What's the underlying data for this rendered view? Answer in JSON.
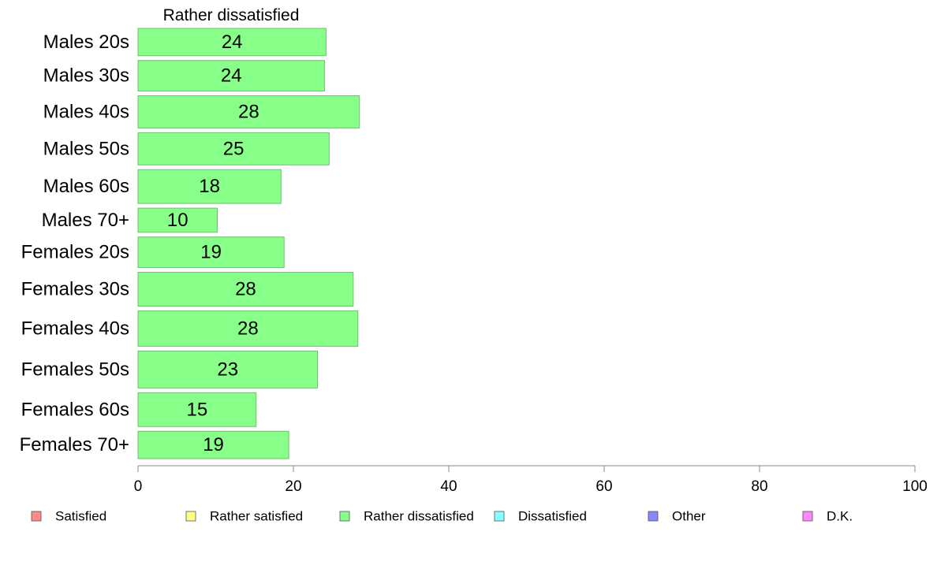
{
  "chart_data": {
    "type": "bar",
    "orientation": "horizontal",
    "panel_title": "Rather dissatisfied",
    "categories": [
      "Males 20s",
      "Males 30s",
      "Males 40s",
      "Males 50s",
      "Males 60s",
      "Males 70+",
      "Females 20s",
      "Females 30s",
      "Females 40s",
      "Females 50s",
      "Females 60s",
      "Females 70+"
    ],
    "values": [
      24,
      24,
      28,
      25,
      18,
      10,
      19,
      28,
      28,
      23,
      15,
      19
    ],
    "precise_values": [
      24.2,
      24.0,
      28.5,
      24.6,
      18.4,
      10.2,
      18.8,
      27.7,
      28.3,
      23.1,
      15.2,
      19.4
    ],
    "bar_thickness_relative": [
      34,
      38,
      40,
      40,
      42,
      30,
      38,
      42,
      44,
      46,
      42,
      34
    ],
    "xlim": [
      0,
      100
    ],
    "xticks": [
      0,
      20,
      40,
      60,
      80,
      100
    ],
    "bar_color": "#88ff88",
    "bar_edge_color": "#6fbf6f",
    "axis_color": "#888888",
    "legend_position": "bottom",
    "legend": [
      {
        "label": "Satisfied",
        "color": "#ff8888"
      },
      {
        "label": "Rather satisfied",
        "color": "#ffff88"
      },
      {
        "label": "Rather dissatisfied",
        "color": "#88ff88"
      },
      {
        "label": "Dissatisfied",
        "color": "#88ffff"
      },
      {
        "label": "Other",
        "color": "#8888ff"
      },
      {
        "label": "D.K.",
        "color": "#ff88ff"
      }
    ]
  }
}
